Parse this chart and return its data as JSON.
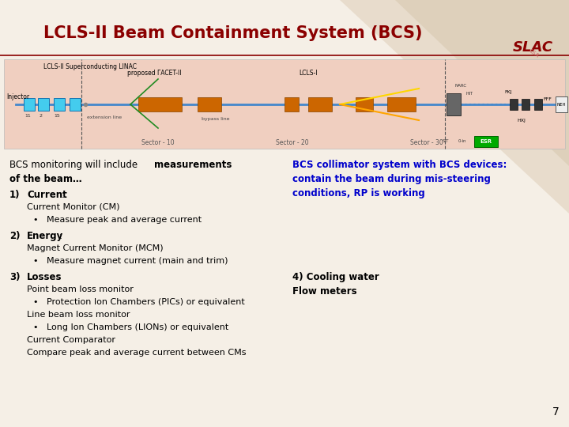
{
  "title": "LCLS-II Beam Containment System (BCS)",
  "title_color": "#8B0000",
  "title_fontsize": 15,
  "bg_color": "#F5EFE6",
  "header_line_color": "#8B0000",
  "slac_text": "SLAC",
  "slac_color": "#8B0000",
  "right_col_line1": "BCS collimator system with BCS devices:",
  "right_col_line2": "contain the beam during mis-steering",
  "right_col_line3": "conditions, RP is working",
  "right_col_color": "#0000CC",
  "cooling_text1": "4) Cooling water",
  "cooling_text2": "Flow meters",
  "page_number": "7"
}
